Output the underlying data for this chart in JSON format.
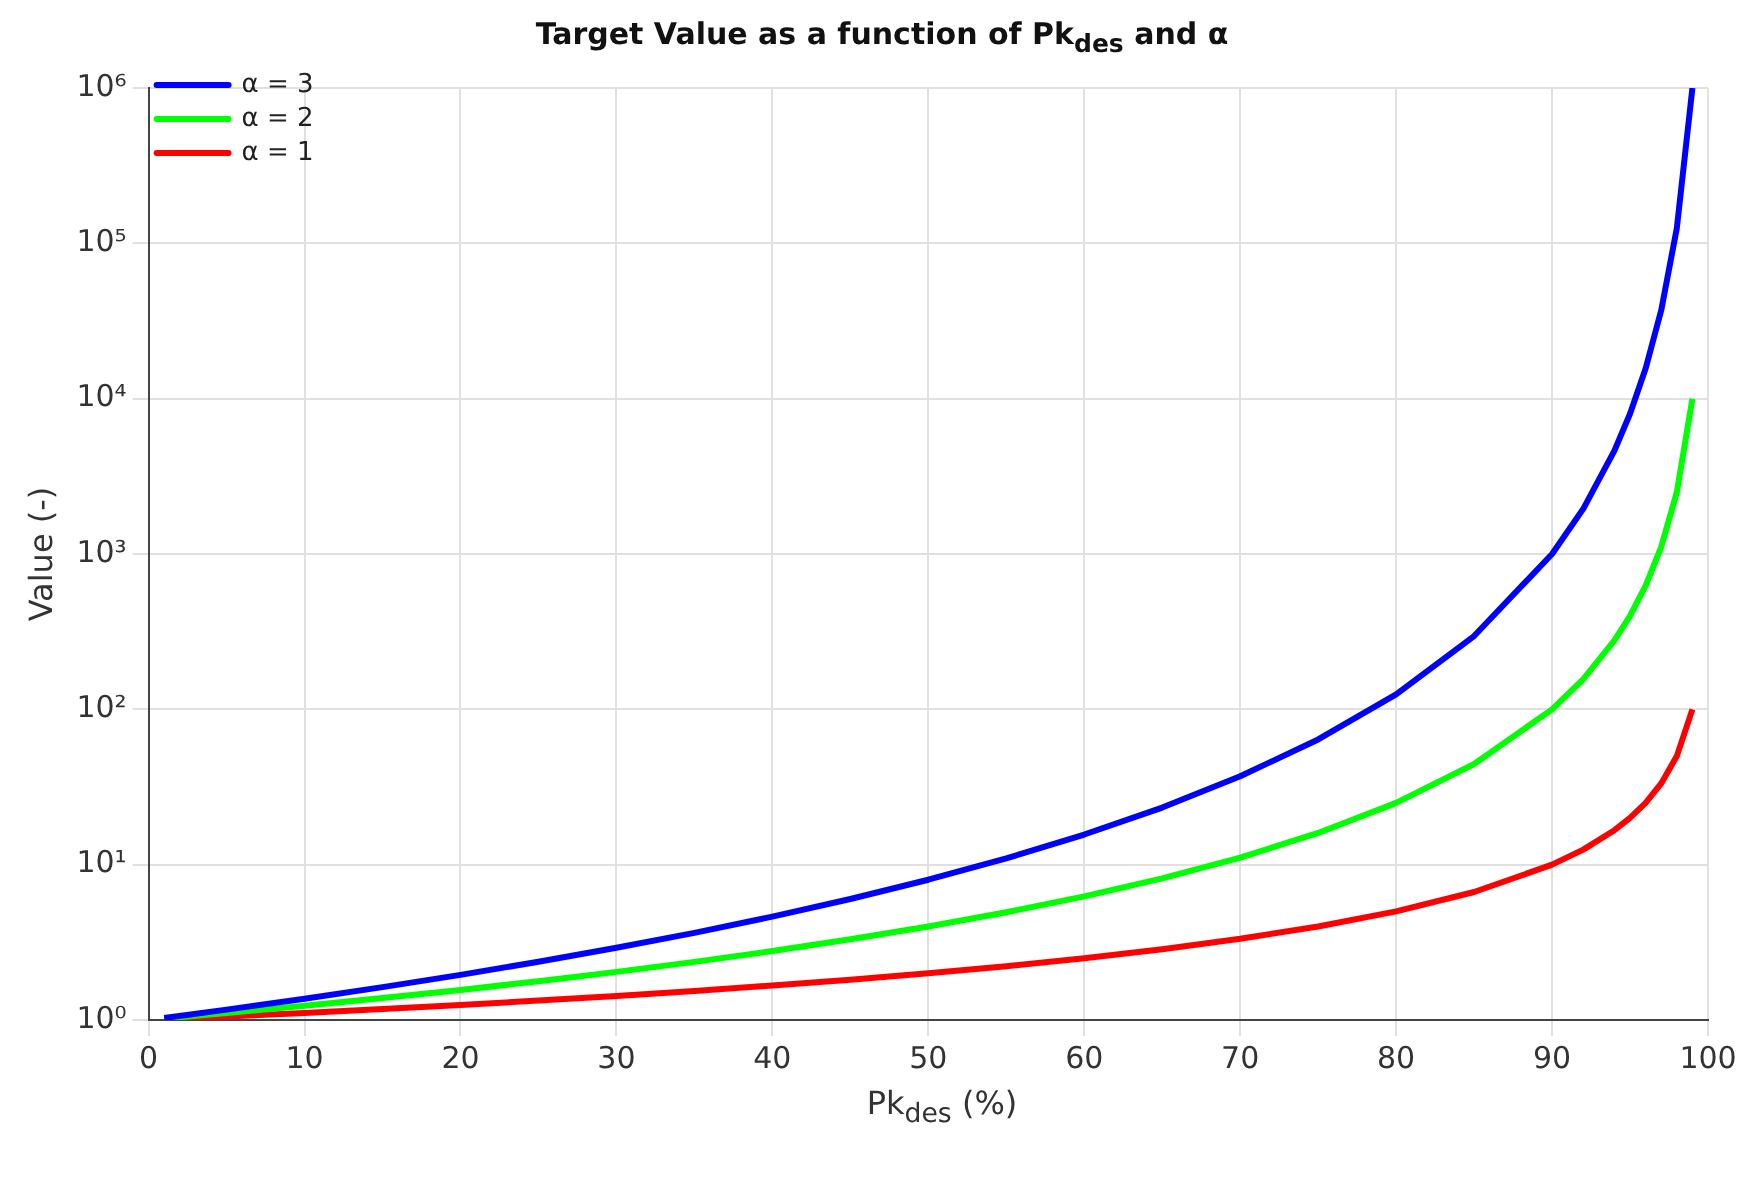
{
  "chart_data": {
    "type": "line",
    "title": "Target Value as a function of Pk$_{des}$ and α",
    "xlabel": "Pk$_{des}$ (%)",
    "ylabel": "Value (-)",
    "x": [
      1,
      5,
      10,
      15,
      20,
      25,
      30,
      35,
      40,
      45,
      50,
      55,
      60,
      65,
      70,
      75,
      80,
      85,
      90,
      92,
      94,
      95,
      96,
      97,
      98,
      99
    ],
    "series": [
      {
        "name": "α = 3",
        "color": "#0000ff",
        "values": [
          1.03,
          1.166,
          1.372,
          1.628,
          1.953,
          2.37,
          2.915,
          3.641,
          4.63,
          6.011,
          8,
          10.97,
          15.63,
          23.32,
          37.04,
          64,
          125,
          296.3,
          1000,
          1953,
          4630,
          8000,
          15625,
          37037,
          125000,
          1000000
        ]
      },
      {
        "name": "α = 2",
        "color": "#00ff00",
        "values": [
          1.02,
          1.108,
          1.235,
          1.384,
          1.5625,
          1.778,
          2.041,
          2.367,
          2.778,
          3.306,
          4,
          4.938,
          6.25,
          8.163,
          11.11,
          16,
          25,
          44.44,
          100,
          156.25,
          277.8,
          400,
          625,
          1111,
          2500,
          10000
        ]
      },
      {
        "name": "α = 1",
        "color": "#ff0000",
        "values": [
          1.01,
          1.053,
          1.111,
          1.176,
          1.25,
          1.333,
          1.429,
          1.538,
          1.667,
          1.818,
          2,
          2.222,
          2.5,
          2.857,
          3.333,
          4,
          5,
          6.667,
          10,
          12.5,
          16.67,
          20,
          25,
          33.33,
          50,
          100
        ]
      }
    ],
    "xlim": [
      0,
      100
    ],
    "xticks": [
      0,
      10,
      20,
      30,
      40,
      50,
      60,
      70,
      80,
      90,
      100
    ],
    "ylim": [
      1,
      1000000
    ],
    "yticks": [
      {
        "value": 1,
        "label": "10⁰"
      },
      {
        "value": 10,
        "label": "10¹"
      },
      {
        "value": 100,
        "label": "10²"
      },
      {
        "value": 1000,
        "label": "10³"
      },
      {
        "value": 10000,
        "label": "10⁴"
      },
      {
        "value": 100000,
        "label": "10⁵"
      },
      {
        "value": 1000000,
        "label": "10⁶"
      }
    ],
    "log": "y",
    "grid": true,
    "legend": "top left",
    "marker": "none",
    "line_style": "solid"
  }
}
